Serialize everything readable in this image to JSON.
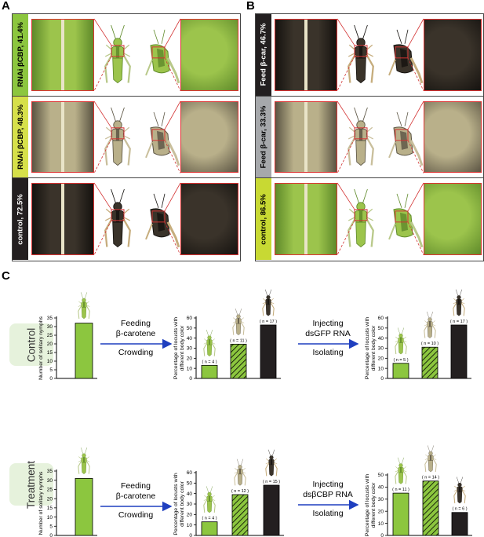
{
  "panel_letters": {
    "a": "A",
    "b": "B",
    "c": "C"
  },
  "panel_a": {
    "rows": [
      {
        "label": "RNAi βCBP, 41.4%",
        "label_bg": "#8cc63f",
        "label_color": "#000000",
        "theme": "green"
      },
      {
        "label": "RNAi βCBP, 48.3%",
        "label_bg": "#d6e04a",
        "label_color": "#000000",
        "theme": "mixed"
      },
      {
        "label": "control, 72.5%",
        "label_bg": "#231f20",
        "label_color": "#ffffff",
        "theme": "black"
      }
    ]
  },
  "panel_b": {
    "rows": [
      {
        "label": "Feed  β-car, 46.7%",
        "label_bg": "#231f20",
        "label_color": "#ffffff",
        "theme": "black"
      },
      {
        "label": "Feed  β-car, 33.3%",
        "label_bg": "#a6a8ab",
        "label_color": "#000000",
        "theme": "mixed"
      },
      {
        "label": "control, 86.5%",
        "label_bg": "#c8d933",
        "label_color": "#000000",
        "theme": "green"
      }
    ]
  },
  "panel_c": {
    "control_label": "Control",
    "treatment_label": "Treatment",
    "arrow1": {
      "line1": "Feeding",
      "line2": "β-carotene",
      "line3": "Crowding"
    },
    "arrow_control": {
      "line1": "Injecting",
      "line2": "dsGFP RNA",
      "line3": "Isolating"
    },
    "arrow_treatment": {
      "line1": "Injecting",
      "line2": "dsβCBP RNA",
      "line3": "Isolating"
    }
  },
  "chart_data": [
    {
      "type": "bar",
      "ylabel": "Number of solitary nymphs",
      "ylim": [
        0,
        35
      ],
      "yticks": [
        0,
        5,
        10,
        15,
        20,
        25,
        30,
        35
      ],
      "values": [
        32
      ],
      "fills": [
        "green"
      ],
      "data_labels": [
        ""
      ]
    },
    {
      "type": "bar",
      "ylabel_line1": "Percentage of locusts with",
      "ylabel_line2": "different body color",
      "ylim": [
        0,
        60
      ],
      "yticks": [
        0,
        10,
        20,
        30,
        40,
        50,
        60
      ],
      "values": [
        13,
        34,
        53
      ],
      "fills": [
        "green",
        "hatched",
        "black"
      ],
      "data_labels": [
        "( n = 4 )",
        "( n = 11 )",
        "( n = 17 )"
      ]
    },
    {
      "type": "bar",
      "ylabel_line1": "Percentage of locusts with",
      "ylabel_line2": "different body color",
      "ylim": [
        0,
        60
      ],
      "yticks": [
        0,
        10,
        20,
        30,
        40,
        50,
        60
      ],
      "values": [
        15,
        31,
        53
      ],
      "fills": [
        "green",
        "hatched",
        "black"
      ],
      "data_labels": [
        "( n = 5 )",
        "( n = 10 )",
        "( n = 17 )"
      ]
    },
    {
      "type": "bar",
      "ylabel": "Number of solitary nymphs",
      "ylim": [
        0,
        35
      ],
      "yticks": [
        0,
        5,
        10,
        15,
        20,
        25,
        30,
        35
      ],
      "values": [
        31
      ],
      "fills": [
        "green"
      ],
      "data_labels": [
        ""
      ]
    },
    {
      "type": "bar",
      "ylabel_line1": "Percentage of locusts with",
      "ylabel_line2": "different body color",
      "ylim": [
        0,
        60
      ],
      "yticks": [
        0,
        10,
        20,
        30,
        40,
        50,
        60
      ],
      "values": [
        13,
        39,
        48
      ],
      "fills": [
        "green",
        "hatched",
        "black"
      ],
      "data_labels": [
        "( n = 4 )",
        "( n = 12 )",
        "( n = 15 )"
      ]
    },
    {
      "type": "bar",
      "ylabel_line1": "Percentage of locusts with",
      "ylabel_line2": "different body color",
      "ylim": [
        0,
        50
      ],
      "yticks": [
        0,
        10,
        20,
        30,
        40,
        50
      ],
      "values": [
        35,
        45,
        19
      ],
      "fills": [
        "green",
        "hatched",
        "black"
      ],
      "data_labels": [
        "( n = 11 )",
        "( n = 14 )",
        "( n = 6 )"
      ]
    }
  ],
  "colors": {
    "green_bar": "#8cc63f",
    "black_bar": "#231f20",
    "arrow_blue": "#1f3fbf",
    "highlight_red": "#d33333",
    "condition_box": "#e6f2dc"
  },
  "icons": {
    "insect": "locust-icon"
  }
}
